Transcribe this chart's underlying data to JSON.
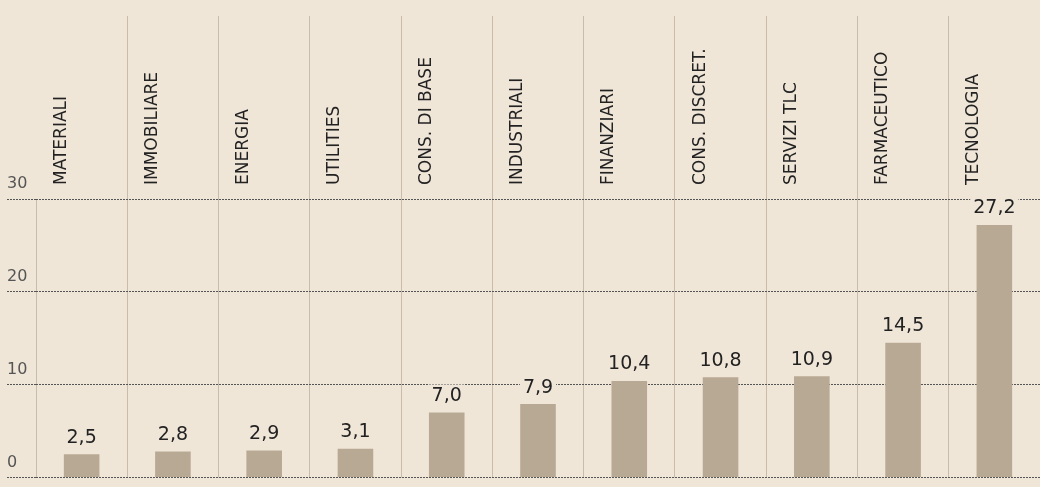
{
  "chart_data": {
    "type": "bar",
    "categories": [
      "MATERIALI",
      "IMMOBILIARE",
      "ENERGIA",
      "UTILITIES",
      "CONS. DI BASE",
      "INDUSTRIALI",
      "FINANZIARI",
      "CONS. DISCRET.",
      "SERVIZI TLC",
      "FARMACEUTICO",
      "TECNOLOGIA"
    ],
    "values": [
      2.5,
      2.8,
      2.9,
      3.1,
      7.0,
      7.9,
      10.4,
      10.8,
      10.9,
      14.5,
      27.2
    ],
    "value_labels": [
      "2,5",
      "2,8",
      "2,9",
      "3,1",
      "7,0",
      "7,9",
      "10,4",
      "10,8",
      "10,9",
      "14,5",
      "27,2"
    ],
    "color": "#b8a994",
    "ylim": [
      0,
      30
    ],
    "yticks": [
      0,
      10,
      20,
      30
    ],
    "grid": true
  }
}
